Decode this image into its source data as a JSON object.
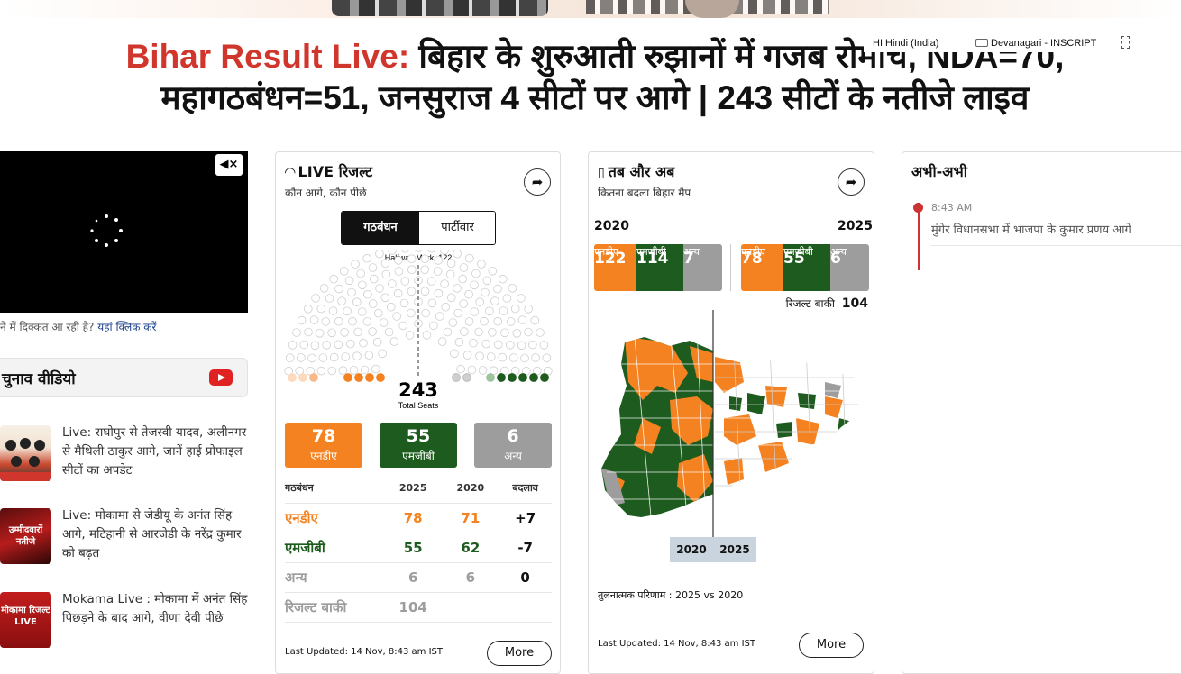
{
  "headline": {
    "prefix": "Bihar Result Live:",
    "line1": " बिहार के शुरुआती रुझानों में गजब रोमांच, NDA=70,",
    "line2": "महागठबंधन=51, जनसुराज 4 सीटों पर आगे | 243 सीटों के नतीजे लाइव"
  },
  "ime": {
    "language": "HI  Hindi (India)",
    "keyboard": "Devanagari - INSCRIPT"
  },
  "video": {
    "mute_icon": "speaker-mute-icon",
    "help_text": "ने में दिक्कत आ रही है?",
    "help_link": "यहां क्लिक करें"
  },
  "videos_section": {
    "title": "चुनाव वीडियो",
    "icon": "youtube-icon"
  },
  "stories": [
    {
      "text": "Live: राघोपुर से तेजस्वी यादव, अलीनगर से मैथिली ठाकुर आगे, जानें हाई प्रोफाइल सीटों का अपडेट"
    },
    {
      "text": "Live: मोकामा से जेडीयू के अनंत सिंह आगे, मटिहानी से आरजेडी के नरेंद्र कुमार को बढ़त",
      "thumb_text": "उम्मीदवारों नतीजे"
    },
    {
      "text": "Mokama Live : मोकामा में अनंत सिंह पिछड़ने के बाद आगे, वीणा देवी पीछे",
      "thumb_text": "मोकामा रिजल्ट LIVE"
    }
  ],
  "live_card": {
    "title": "LIVE रिजल्ट",
    "subtitle": "कौन आगे, कौन पीछे",
    "tabs": [
      "गठबंधन",
      "पार्टीवार"
    ],
    "halfway": "Halfway Mark: 122",
    "total": "243",
    "total_label": "Total Seats",
    "summary": [
      {
        "value": "78",
        "label": "एनडीए",
        "color": "#f58220"
      },
      {
        "value": "55",
        "label": "एमजीबी",
        "color": "#1e5b1e"
      },
      {
        "value": "6",
        "label": "अन्य",
        "color": "#9d9d9d"
      }
    ],
    "table": {
      "headers": [
        "गठबंधन",
        "2025",
        "2020",
        "बदलाव"
      ],
      "rows": [
        {
          "name": "एनडीए",
          "y2025": "78",
          "y2020": "71",
          "change": "+7",
          "color": "#f58220"
        },
        {
          "name": "एमजीबी",
          "y2025": "55",
          "y2020": "62",
          "change": "-7",
          "color": "#1e5b1e"
        },
        {
          "name": "अन्य",
          "y2025": "6",
          "y2020": "6",
          "change": "0",
          "color": "#9d9d9d"
        },
        {
          "name": "रिजल्ट बाकी",
          "y2025": "104",
          "y2020": "",
          "change": "",
          "color": "#9d9d9d"
        }
      ]
    },
    "last_updated": "Last Updated: 14 Nov, 8:43 am IST",
    "more": "More"
  },
  "map_card": {
    "title": "तब और अब",
    "subtitle": "कितना बदला बिहार मैप",
    "year_left": "2020",
    "year_right": "2025",
    "left": [
      {
        "value": "122",
        "label": "एनडीए"
      },
      {
        "value": "114",
        "label": "एमजीबी"
      },
      {
        "value": "7",
        "label": "अन्य"
      }
    ],
    "right": [
      {
        "value": "78",
        "label": "एनडीए"
      },
      {
        "value": "55",
        "label": "एमजीबी"
      },
      {
        "value": "6",
        "label": "अन्य"
      }
    ],
    "pending_label": "रिजल्ट बाकी",
    "pending_value": "104",
    "slider_left": "2020",
    "slider_right": "2025",
    "caption": "तुलनात्मक परिणाम : 2025 vs 2020",
    "last_updated": "Last Updated: 14 Nov, 8:43 am IST",
    "more": "More"
  },
  "feed_card": {
    "title": "अभी-अभी",
    "items": [
      {
        "time": "8:43 AM",
        "text": "मुंगेर विधानसभा में भाजपा के कुमार प्रणय आगे"
      }
    ]
  },
  "colors": {
    "nda": "#f58220",
    "mgb": "#1e5b1e",
    "other": "#9d9d9d",
    "red": "#d1362c"
  }
}
